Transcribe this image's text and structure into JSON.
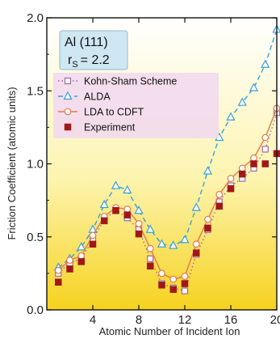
{
  "chart_data": {
    "type": "line",
    "xlabel": "Atomic Number of  Incident  Ion",
    "ylabel": "Friction Coefficient  (atomic units)",
    "xlim": [
      0,
      20
    ],
    "ylim": [
      0,
      2.0
    ],
    "x_ticks": [
      "4",
      "8",
      "12",
      "16",
      "20"
    ],
    "x_tick_values": [
      4,
      8,
      12,
      16,
      20
    ],
    "y_ticks": [
      "0.0",
      "0.5",
      "1.0",
      "1.5",
      "2.0"
    ],
    "y_tick_values": [
      0,
      0.5,
      1.0,
      1.5,
      2.0
    ],
    "grid": false,
    "legend_position": "top-left",
    "annotation": {
      "line1": "Al (111)",
      "line2_main": "r",
      "line2_sub": "S",
      "line2_rest": "= 2.2"
    },
    "series": [
      {
        "name": "Kohn-Sham Scheme",
        "color": "#9e6aa8",
        "marker": "open-square",
        "line": "dotted",
        "x": [
          1,
          2,
          3,
          4,
          5,
          6,
          7,
          8,
          9,
          10,
          11,
          12,
          13,
          14,
          15,
          16,
          17,
          18,
          19,
          20
        ],
        "y": [
          0.25,
          0.32,
          0.35,
          0.48,
          0.62,
          0.68,
          0.63,
          0.55,
          0.35,
          0.18,
          0.15,
          0.13,
          0.38,
          0.55,
          0.74,
          0.85,
          0.9,
          0.97,
          1.1,
          1.35
        ]
      },
      {
        "name": "ALDA",
        "color": "#3a9fd6",
        "marker": "open-triangle",
        "line": "dashed",
        "x": [
          1,
          2,
          3,
          4,
          5,
          6,
          7,
          8,
          9,
          10,
          11,
          12,
          13,
          14,
          15,
          16,
          17,
          18,
          19,
          20
        ],
        "y": [
          0.29,
          0.35,
          0.43,
          0.55,
          0.72,
          0.85,
          0.82,
          0.68,
          0.55,
          0.45,
          0.44,
          0.48,
          0.7,
          0.95,
          1.18,
          1.32,
          1.42,
          1.52,
          1.68,
          1.92
        ]
      },
      {
        "name": "LDA to CDFT",
        "color": "#e07a4a",
        "marker": "open-circle",
        "line": "solid",
        "x": [
          1,
          2,
          3,
          4,
          5,
          6,
          7,
          8,
          9,
          10,
          11,
          12,
          13,
          14,
          15,
          16,
          17,
          18,
          19,
          20
        ],
        "y": [
          0.27,
          0.34,
          0.37,
          0.51,
          0.64,
          0.7,
          0.69,
          0.59,
          0.42,
          0.25,
          0.21,
          0.23,
          0.45,
          0.62,
          0.79,
          0.9,
          0.97,
          1.04,
          1.18,
          1.38
        ]
      },
      {
        "name": "Experiment",
        "color": "#a01818",
        "marker": "filled-square",
        "line": "none",
        "x": [
          1,
          2,
          3,
          4,
          5,
          6,
          7,
          8,
          9,
          10,
          11,
          12,
          13,
          14,
          15,
          16,
          17,
          18,
          19,
          20
        ],
        "y": [
          0.19,
          0.28,
          0.33,
          0.45,
          0.61,
          0.68,
          0.65,
          0.52,
          0.3,
          0.17,
          0.14,
          0.18,
          0.39,
          0.56,
          0.71,
          0.83,
          0.93,
          1.0,
          1.0,
          1.07
        ]
      }
    ]
  }
}
